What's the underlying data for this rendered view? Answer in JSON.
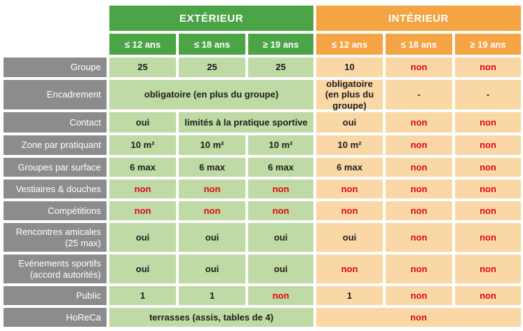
{
  "colors": {
    "exterior_header": "#4ba547",
    "exterior_cell": "#bfdaa4",
    "interior_header": "#f5a444",
    "interior_cell": "#fad8a6",
    "label_bg": "#8c8c8c",
    "negative_text": "#e30613",
    "value_text": "#1d1d1b",
    "header_text": "#ffffff"
  },
  "table": {
    "sections": [
      {
        "id": "exterieur",
        "title": "EXTÉRIEUR",
        "age_headers": [
          "≤ 12 ans",
          "≤ 18 ans",
          "≥ 19 ans"
        ]
      },
      {
        "id": "interieur",
        "title": "INTÉRIEUR",
        "age_headers": [
          "≤ 12 ans",
          "≤ 18 ans",
          "≥ 19 ans"
        ]
      }
    ],
    "rows": [
      {
        "label": "Groupe",
        "exterieur": [
          {
            "t": "25"
          },
          {
            "t": "25"
          },
          {
            "t": "25"
          }
        ],
        "interieur": [
          {
            "t": "10"
          },
          {
            "t": "non",
            "red": true
          },
          {
            "t": "non",
            "red": true
          }
        ]
      },
      {
        "label": "Encadrement",
        "exterieur": [
          {
            "t": "obligatoire (en plus du groupe)",
            "span": 3
          }
        ],
        "interieur": [
          {
            "t": "obligatoire (en plus du groupe)"
          },
          {
            "t": "-"
          },
          {
            "t": "-"
          }
        ]
      },
      {
        "label": "Contact",
        "exterieur": [
          {
            "t": "oui"
          },
          {
            "t": "limités à la pratique sportive",
            "span": 2
          }
        ],
        "interieur": [
          {
            "t": "oui"
          },
          {
            "t": "non",
            "red": true
          },
          {
            "t": "non",
            "red": true
          }
        ]
      },
      {
        "label": "Zone par pratiquant",
        "exterieur": [
          {
            "t": "10 m²"
          },
          {
            "t": "10 m²"
          },
          {
            "t": "10 m²"
          }
        ],
        "interieur": [
          {
            "t": "10 m²"
          },
          {
            "t": "non",
            "red": true
          },
          {
            "t": "non",
            "red": true
          }
        ]
      },
      {
        "label": "Groupes par surface",
        "exterieur": [
          {
            "t": "6 max"
          },
          {
            "t": "6 max"
          },
          {
            "t": "6 max"
          }
        ],
        "interieur": [
          {
            "t": "6 max"
          },
          {
            "t": "non",
            "red": true
          },
          {
            "t": "non",
            "red": true
          }
        ]
      },
      {
        "label": "Vestiaires & douches",
        "exterieur": [
          {
            "t": "non",
            "red": true
          },
          {
            "t": "non",
            "red": true
          },
          {
            "t": "non",
            "red": true
          }
        ],
        "interieur": [
          {
            "t": "non",
            "red": true
          },
          {
            "t": "non",
            "red": true
          },
          {
            "t": "non",
            "red": true
          }
        ]
      },
      {
        "label": "Compétitions",
        "exterieur": [
          {
            "t": "non",
            "red": true
          },
          {
            "t": "non",
            "red": true
          },
          {
            "t": "non",
            "red": true
          }
        ],
        "interieur": [
          {
            "t": "non",
            "red": true
          },
          {
            "t": "non",
            "red": true
          },
          {
            "t": "non",
            "red": true
          }
        ]
      },
      {
        "label": "Rencontres amicales (25 max)",
        "exterieur": [
          {
            "t": "oui"
          },
          {
            "t": "oui"
          },
          {
            "t": "oui"
          }
        ],
        "interieur": [
          {
            "t": "oui"
          },
          {
            "t": "non",
            "red": true
          },
          {
            "t": "non",
            "red": true
          }
        ]
      },
      {
        "label": "Evénements sportifs (accord autorités)",
        "exterieur": [
          {
            "t": "oui"
          },
          {
            "t": "oui"
          },
          {
            "t": "oui"
          }
        ],
        "interieur": [
          {
            "t": "non",
            "red": true
          },
          {
            "t": "non",
            "red": true
          },
          {
            "t": "non",
            "red": true
          }
        ]
      },
      {
        "label": "Public",
        "exterieur": [
          {
            "t": "1"
          },
          {
            "t": "1"
          },
          {
            "t": "non",
            "red": true
          }
        ],
        "interieur": [
          {
            "t": "1"
          },
          {
            "t": "non",
            "red": true
          },
          {
            "t": "non",
            "red": true
          }
        ]
      },
      {
        "label": "HoReCa",
        "exterieur": [
          {
            "t": "terrasses (assis, tables de 4)",
            "span": 3
          }
        ],
        "interieur": [
          {
            "t": "non",
            "red": true,
            "span": 3
          }
        ]
      }
    ]
  }
}
